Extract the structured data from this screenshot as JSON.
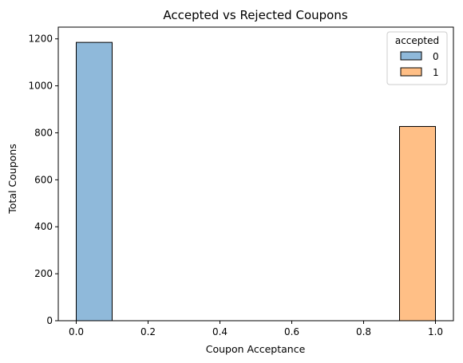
{
  "chart_data": {
    "type": "bar",
    "title": "Accepted vs Rejected Coupons",
    "xlabel": "Coupon Acceptance",
    "ylabel": "Total Coupons",
    "xlim": [
      -0.05,
      1.05
    ],
    "ylim": [
      0,
      1250
    ],
    "xticks": [
      "0.0",
      "0.2",
      "0.4",
      "0.6",
      "0.8",
      "1.0"
    ],
    "xtick_values": [
      0.0,
      0.2,
      0.4,
      0.6,
      0.8,
      1.0
    ],
    "yticks": [
      "0",
      "200",
      "400",
      "600",
      "800",
      "1000",
      "1200"
    ],
    "ytick_values": [
      0,
      200,
      400,
      600,
      800,
      1000,
      1200
    ],
    "grid": false,
    "legend": {
      "title": "accepted",
      "placement": "top-right"
    },
    "series": [
      {
        "name": "0",
        "bin_start": 0.0,
        "bin_end": 0.1,
        "value": 1185,
        "color": "#8fb9da"
      },
      {
        "name": "1",
        "bin_start": 0.9,
        "bin_end": 1.0,
        "value": 827,
        "color": "#ffbf86"
      }
    ]
  }
}
